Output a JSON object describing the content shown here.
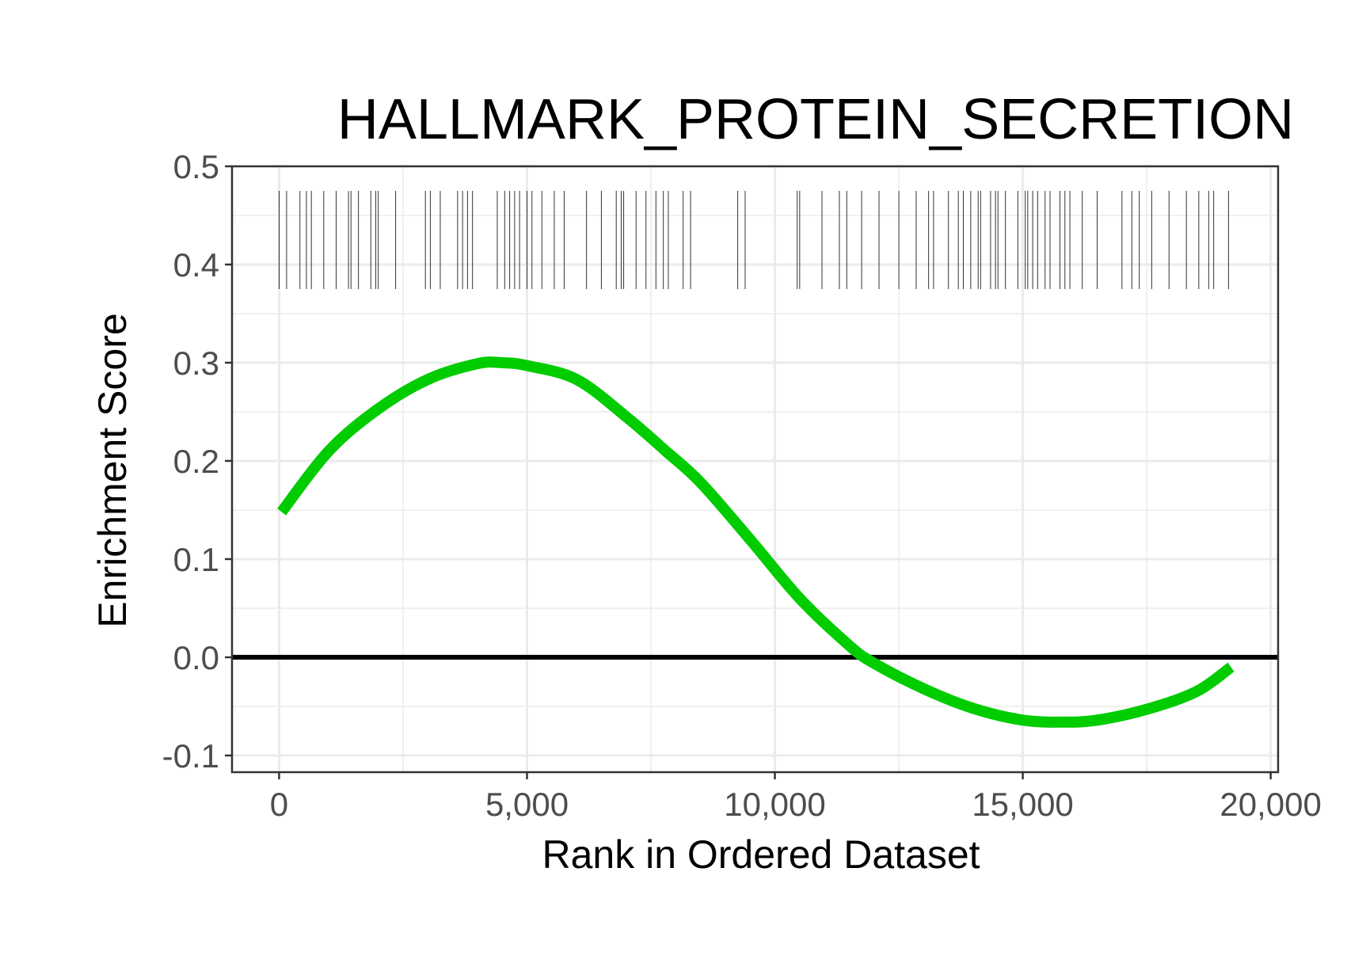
{
  "chart_data": {
    "type": "line",
    "title": "HALLMARK_PROTEIN_SECRETION",
    "xlabel": "Rank in Ordered Dataset",
    "ylabel": "Enrichment Score",
    "xlim": [
      -950,
      20150
    ],
    "ylim": [
      -0.117,
      0.5
    ],
    "x_ticks": [
      0,
      5000,
      10000,
      15000,
      20000
    ],
    "x_tick_labels": [
      "0",
      "5,000",
      "10,000",
      "15,000",
      "20,000"
    ],
    "y_ticks": [
      -0.1,
      0.0,
      0.1,
      0.2,
      0.3,
      0.4,
      0.5
    ],
    "y_tick_labels": [
      "-0.1",
      "0.0",
      "0.1",
      "0.2",
      "0.3",
      "0.4",
      "0.5"
    ],
    "grid": true,
    "zero_line": 0.0,
    "colors": {
      "curve": "#00cc00",
      "zero_line": "#000000",
      "hits": "#333333",
      "grid": "#ebebeb"
    },
    "series": [
      {
        "x": [
          50,
          1000,
          2000,
          3000,
          4000,
          4500,
          5000,
          6000,
          7000,
          7800,
          8500,
          9500,
          10500,
          11500,
          12000,
          13000,
          14000,
          15000,
          15800,
          16500,
          17500,
          18500,
          19200
        ],
        "y": [
          0.148,
          0.21,
          0.253,
          0.283,
          0.299,
          0.3,
          0.297,
          0.283,
          0.245,
          0.21,
          0.178,
          0.12,
          0.06,
          0.012,
          -0.006,
          -0.032,
          -0.052,
          -0.064,
          -0.066,
          -0.064,
          -0.053,
          -0.035,
          -0.01
        ]
      }
    ],
    "hits": {
      "y_range": [
        0.375,
        0.475
      ],
      "x": [
        0,
        150,
        420,
        550,
        650,
        900,
        1150,
        1400,
        1450,
        1600,
        1850,
        1950,
        2000,
        2350,
        2950,
        3050,
        3250,
        3600,
        3700,
        3800,
        3900,
        4400,
        4550,
        4650,
        4750,
        4850,
        5000,
        5100,
        5300,
        5550,
        5750,
        6200,
        6500,
        6800,
        6900,
        6950,
        7200,
        7400,
        7600,
        7750,
        7850,
        8150,
        8300,
        9250,
        9400,
        10450,
        10500,
        10950,
        11300,
        11450,
        11750,
        12100,
        12500,
        12850,
        13100,
        13200,
        13500,
        13700,
        13800,
        13950,
        14100,
        14150,
        14350,
        14450,
        14500,
        14650,
        14900,
        15050,
        15100,
        15200,
        15300,
        15450,
        15550,
        15750,
        15850,
        15950,
        16200,
        16500,
        17000,
        17200,
        17350,
        17600,
        17950,
        18300,
        18550,
        18750,
        18850,
        19150
      ]
    }
  }
}
